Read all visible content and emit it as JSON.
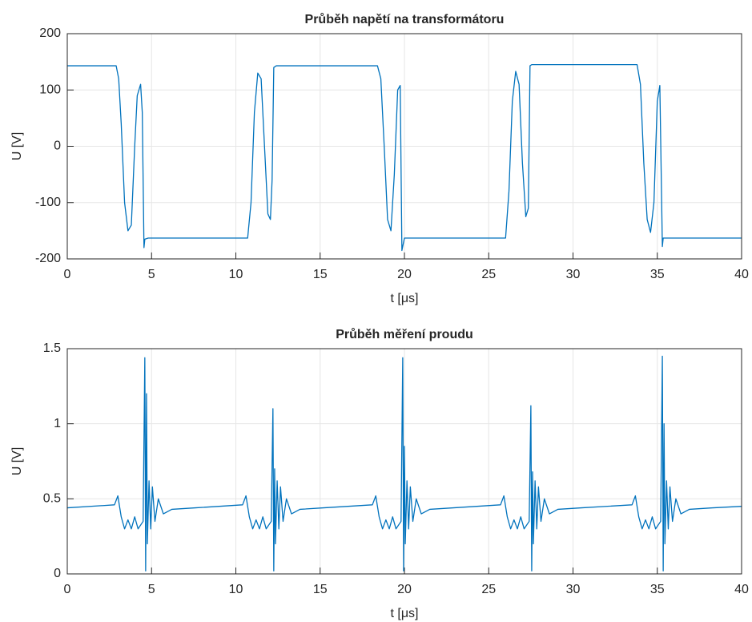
{
  "chart_data": [
    {
      "type": "line",
      "title": "Průběh napětí na transformátoru",
      "xlabel": "t [μs]",
      "ylabel": "U [V]",
      "xlim": [
        0,
        40
      ],
      "ylim": [
        -200,
        200
      ],
      "xticks": [
        0,
        5,
        10,
        15,
        20,
        25,
        30,
        35,
        40
      ],
      "yticks": [
        -200,
        -100,
        0,
        100,
        200
      ],
      "grid": true,
      "series": [
        {
          "color": "#0072bd",
          "x": [
            0,
            2.9,
            3.05,
            3.2,
            3.4,
            3.6,
            3.8,
            4.0,
            4.15,
            4.35,
            4.45,
            4.55,
            4.6,
            4.8,
            10.7,
            10.9,
            11.1,
            11.3,
            11.5,
            11.7,
            11.9,
            12.05,
            12.15,
            12.25,
            12.4,
            18.4,
            18.6,
            18.8,
            19.0,
            19.2,
            19.4,
            19.6,
            19.75,
            19.85,
            20.0,
            26.0,
            26.2,
            26.4,
            26.6,
            26.8,
            27.0,
            27.2,
            27.35,
            27.45,
            27.55,
            33.8,
            34.0,
            34.2,
            34.4,
            34.6,
            34.8,
            35.0,
            35.15,
            35.3,
            35.35,
            35.5,
            40
          ],
          "values": [
            143,
            143,
            120,
            40,
            -100,
            -150,
            -140,
            0,
            90,
            110,
            60,
            -180,
            -165,
            -163,
            -163,
            -100,
            60,
            130,
            120,
            0,
            -120,
            -130,
            -60,
            140,
            143,
            143,
            120,
            0,
            -130,
            -150,
            -50,
            100,
            108,
            -185,
            -163,
            -163,
            -80,
            80,
            133,
            110,
            -30,
            -125,
            -110,
            143,
            145,
            145,
            110,
            -30,
            -130,
            -153,
            -100,
            80,
            108,
            -178,
            -163,
            -163,
            -163
          ]
        }
      ]
    },
    {
      "type": "line",
      "title": "Průběh měření proudu",
      "xlabel": "t [μs]",
      "ylabel": "U [V]",
      "xlim": [
        0,
        40
      ],
      "ylim": [
        0,
        1.5
      ],
      "xticks": [
        0,
        5,
        10,
        15,
        20,
        25,
        30,
        35,
        40
      ],
      "yticks": [
        0,
        0.5,
        1,
        1.5
      ],
      "grid": true,
      "series": [
        {
          "color": "#0072bd",
          "x": [
            0,
            2.8,
            3.0,
            3.2,
            3.4,
            3.6,
            3.8,
            4.0,
            4.2,
            4.5,
            4.6,
            4.65,
            4.7,
            4.75,
            4.85,
            4.95,
            5.05,
            5.2,
            5.4,
            5.7,
            6.2,
            7.6,
            10.4,
            10.6,
            10.8,
            11.0,
            11.2,
            11.4,
            11.6,
            11.8,
            12.1,
            12.2,
            12.25,
            12.3,
            12.35,
            12.45,
            12.55,
            12.65,
            12.8,
            13.0,
            13.3,
            13.8,
            15.2,
            18.1,
            18.3,
            18.5,
            18.7,
            18.9,
            19.1,
            19.3,
            19.5,
            19.8,
            19.9,
            19.95,
            20.0,
            20.05,
            20.15,
            20.25,
            20.35,
            20.5,
            20.7,
            21.0,
            21.5,
            22.9,
            25.7,
            25.9,
            26.1,
            26.3,
            26.5,
            26.7,
            26.9,
            27.1,
            27.4,
            27.5,
            27.55,
            27.6,
            27.65,
            27.75,
            27.85,
            27.95,
            28.1,
            28.3,
            28.6,
            29.1,
            30.5,
            33.5,
            33.7,
            33.9,
            34.1,
            34.3,
            34.5,
            34.7,
            34.9,
            35.2,
            35.3,
            35.35,
            35.4,
            35.45,
            35.55,
            35.65,
            35.75,
            35.9,
            36.1,
            36.4,
            36.9,
            38.3,
            40
          ],
          "values": [
            0.44,
            0.46,
            0.52,
            0.38,
            0.3,
            0.36,
            0.3,
            0.38,
            0.3,
            0.35,
            1.44,
            0.02,
            1.2,
            0.2,
            0.62,
            0.3,
            0.58,
            0.35,
            0.5,
            0.4,
            0.43,
            0.44,
            0.46,
            0.52,
            0.38,
            0.3,
            0.36,
            0.3,
            0.38,
            0.3,
            0.35,
            1.1,
            0.02,
            0.7,
            0.2,
            0.62,
            0.3,
            0.58,
            0.35,
            0.5,
            0.4,
            0.43,
            0.44,
            0.46,
            0.52,
            0.38,
            0.3,
            0.36,
            0.3,
            0.38,
            0.3,
            0.35,
            1.44,
            0.02,
            0.85,
            0.2,
            0.62,
            0.3,
            0.58,
            0.35,
            0.5,
            0.4,
            0.43,
            0.44,
            0.46,
            0.52,
            0.38,
            0.3,
            0.36,
            0.3,
            0.38,
            0.3,
            0.35,
            1.12,
            0.02,
            0.68,
            0.2,
            0.62,
            0.3,
            0.58,
            0.35,
            0.5,
            0.4,
            0.43,
            0.44,
            0.46,
            0.52,
            0.38,
            0.3,
            0.36,
            0.3,
            0.38,
            0.3,
            0.35,
            1.45,
            0.02,
            1.0,
            0.2,
            0.62,
            0.3,
            0.58,
            0.35,
            0.5,
            0.4,
            0.43,
            0.44,
            0.45
          ]
        }
      ]
    }
  ]
}
